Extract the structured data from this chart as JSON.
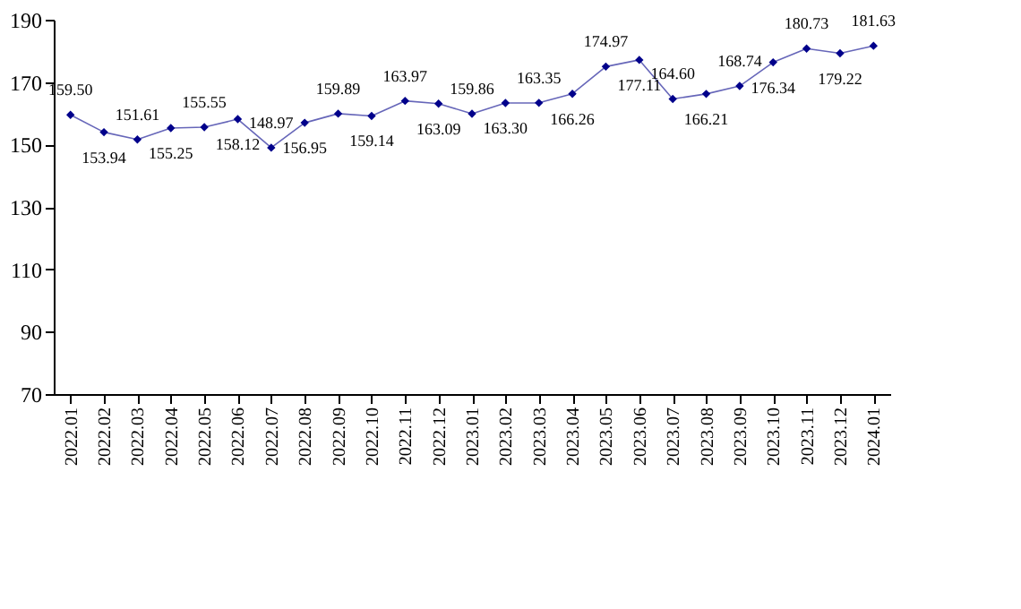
{
  "chart_data": {
    "type": "line",
    "categories": [
      "2022.01",
      "2022.02",
      "2022.03",
      "2022.04",
      "2022.05",
      "2022.06",
      "2022.07",
      "2022.08",
      "2022.09",
      "2022.10",
      "2022.11",
      "2022.12",
      "2023.01",
      "2023.02",
      "2023.03",
      "2023.04",
      "2023.05",
      "2023.06",
      "2023.07",
      "2023.08",
      "2023.09",
      "2023.10",
      "2023.11",
      "2023.12",
      "2024.01"
    ],
    "series": [
      {
        "color": "#00008b",
        "values": [
          159.5,
          153.94,
          151.61,
          155.25,
          155.55,
          158.12,
          148.97,
          156.95,
          159.89,
          159.14,
          163.97,
          163.09,
          159.86,
          163.3,
          163.35,
          166.26,
          174.97,
          177.11,
          164.6,
          166.21,
          168.74,
          176.34,
          180.73,
          179.22,
          181.63
        ],
        "value_labels": [
          "159.50",
          "153.94",
          "151.61",
          "155.25",
          "155.55",
          "158.12",
          "148.97",
          "156.95",
          "159.89",
          "159.14",
          "163.97",
          "163.09",
          "159.86",
          "163.30",
          "163.35",
          "166.26",
          "174.97",
          "177.11",
          "164.60",
          "166.21",
          "168.74",
          "176.34",
          "180.73",
          "179.22",
          "181.63"
        ]
      }
    ],
    "ylim": [
      70,
      190
    ],
    "yticks": [
      70,
      90,
      110,
      130,
      150,
      170,
      190
    ],
    "marker": "diamond",
    "line_style": "solid",
    "grid": false
  }
}
